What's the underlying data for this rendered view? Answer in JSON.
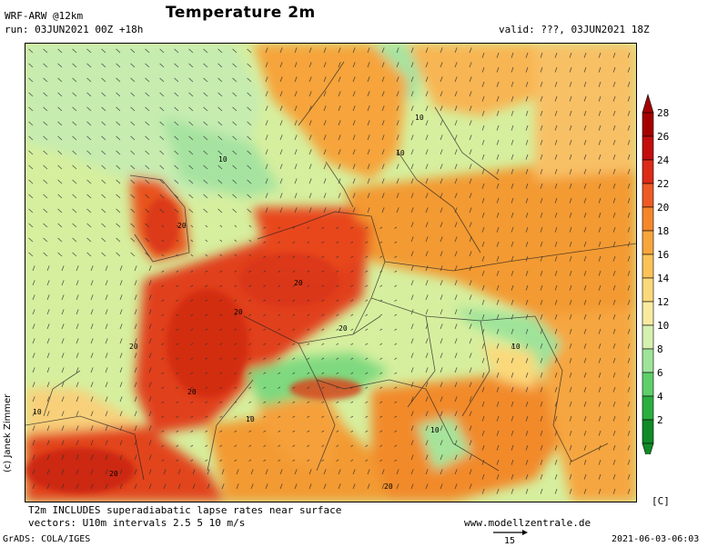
{
  "header": {
    "model": "WRF-ARW @12km",
    "run": "run: 03JUN2021 00Z +18h",
    "title": "Temperature 2m",
    "valid": "valid: ???, 03JUN2021 18Z"
  },
  "copyright": "(c) Janek Zimmer",
  "footer": {
    "note1": "T2m INCLUDES superadiabatic lapse rates near surface",
    "note2": "vectors: U10m intervals 2.5 5 10 m/s",
    "website": "www.modellzentrale.de",
    "grads": "GrADS: COLA/IGES",
    "timestamp": "2021-06-03-06:03",
    "vector_scale": "15"
  },
  "colorbar": {
    "unit": "[C]",
    "labels": [
      "28",
      "26",
      "24",
      "22",
      "20",
      "18",
      "16",
      "14",
      "12",
      "10",
      "8",
      "6",
      "4",
      "2"
    ],
    "colors": [
      "#a50000",
      "#c40d0d",
      "#dd2a17",
      "#ee5a24",
      "#f5862a",
      "#f8a53c",
      "#fbc257",
      "#fbd97a",
      "#f8eb9f",
      "#d6f0b0",
      "#9fe39a",
      "#5fcf6a",
      "#2aaf3e",
      "#108a27"
    ]
  },
  "map": {
    "contour_labels": [
      "10",
      "10",
      "10",
      "10",
      "10",
      "20",
      "20",
      "20",
      "20",
      "20",
      "20",
      "20",
      "10",
      "10",
      "20"
    ],
    "region_colors": {
      "sea_cool": "#a8e6a2",
      "sea_mild": "#d2efb0",
      "land_warm": "#f6a43a",
      "land_hot": "#e8471e",
      "land_very_hot": "#cf2a12",
      "mountain": "#3cbf5a"
    }
  }
}
